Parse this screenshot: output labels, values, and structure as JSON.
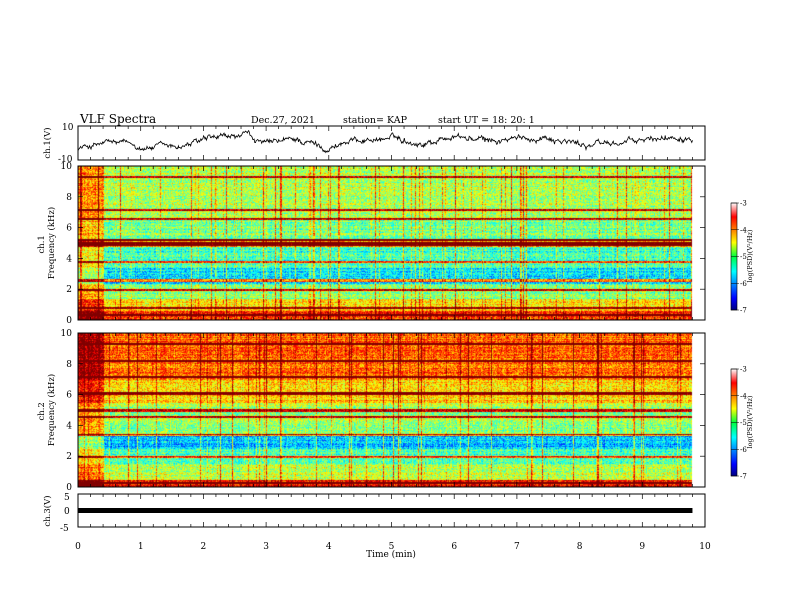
{
  "header": {
    "title": "VLF Spectra",
    "date": "Dec.27, 2021",
    "station": "station= KAP",
    "start_ut": "start  UT =   18: 20: 1"
  },
  "chart_data": [
    {
      "type": "line",
      "ylabel": "ch.1(V)",
      "xlim": [
        0,
        10
      ],
      "ylim": [
        -10,
        10
      ],
      "yticks": [
        "10",
        "-10"
      ],
      "data_extent_min": 9.8,
      "trend": {
        "x": [
          0,
          0.5,
          1,
          1.5,
          2,
          2.3,
          2.7,
          3,
          3.5,
          4,
          4.2,
          4.5,
          5,
          5.5,
          6,
          6.5,
          7,
          7.5,
          8,
          8.5,
          9,
          9.5,
          9.8
        ],
        "y": [
          -3,
          0,
          -2,
          -3,
          1,
          2,
          4,
          -1,
          2,
          -3,
          0,
          2,
          3,
          0,
          4,
          1,
          2,
          4,
          -1,
          0,
          1,
          4,
          5
        ]
      },
      "noise_amplitude": 2
    },
    {
      "type": "heatmap",
      "ylabel": "ch.1\nFrequency (kHz)",
      "xlim": [
        0,
        10
      ],
      "ylim": [
        0,
        10
      ],
      "yticks": [
        "0",
        "2",
        "4",
        "6",
        "8",
        "10"
      ],
      "data_extent_min": 9.8,
      "z_label": "log(PSD)(V²/Hz)",
      "z_range": [
        -7,
        -3
      ],
      "z_ticks": [
        "-3",
        "-4",
        "-5",
        "-6",
        "-7"
      ],
      "bands_khz": [
        {
          "lo": 0,
          "hi": 0.6,
          "z": -3.7
        },
        {
          "lo": 0.6,
          "hi": 1.4,
          "z": -4.4
        },
        {
          "lo": 1.4,
          "hi": 2.4,
          "z": -5.0
        },
        {
          "lo": 2.4,
          "hi": 3.4,
          "z": -5.6
        },
        {
          "lo": 3.4,
          "hi": 4.8,
          "z": -5.3
        },
        {
          "lo": 4.8,
          "hi": 5.3,
          "z": -4.2
        },
        {
          "lo": 5.3,
          "hi": 6.6,
          "z": -5.0
        },
        {
          "lo": 6.6,
          "hi": 10,
          "z": -4.8
        }
      ],
      "lines_khz": [
        0.35,
        0.8,
        2.0,
        2.6,
        3.8,
        4.9,
        5.0,
        5.2,
        6.6,
        7.2,
        9.3
      ],
      "early_segment_end_min": 0.42
    },
    {
      "type": "heatmap",
      "ylabel": "ch.2\nFrequency (kHz)",
      "xlim": [
        0,
        10
      ],
      "ylim": [
        0,
        10
      ],
      "yticks": [
        "0",
        "2",
        "4",
        "6",
        "8",
        "10"
      ],
      "data_extent_min": 9.8,
      "z_label": "log(PSD)(V²/Hz)",
      "z_range": [
        -7,
        -3
      ],
      "z_ticks": [
        "-3",
        "-4",
        "-5",
        "-6",
        "-7"
      ],
      "bands_khz": [
        {
          "lo": 0,
          "hi": 0.5,
          "z": -3.6
        },
        {
          "lo": 0.5,
          "hi": 1.5,
          "z": -4.8
        },
        {
          "lo": 1.5,
          "hi": 2.5,
          "z": -5.3
        },
        {
          "lo": 2.5,
          "hi": 3.4,
          "z": -5.8
        },
        {
          "lo": 3.4,
          "hi": 5.5,
          "z": -4.9
        },
        {
          "lo": 5.5,
          "hi": 7.0,
          "z": -4.3
        },
        {
          "lo": 7.0,
          "hi": 10,
          "z": -3.9
        }
      ],
      "lines_khz": [
        0.3,
        2.0,
        3.4,
        4.6,
        5.0,
        6.1,
        7.2,
        8.2,
        9.3
      ],
      "early_segment_end_min": 0.42
    },
    {
      "type": "line",
      "ylabel": "ch.3(V)",
      "xlim": [
        0,
        10
      ],
      "ylim": [
        -5,
        5
      ],
      "yticks": [
        "5",
        "0",
        "-5"
      ],
      "data_extent_min": 9.8,
      "x": [
        0,
        9.8
      ],
      "y": [
        0,
        0
      ]
    }
  ],
  "xaxis": {
    "label": "Time (min)",
    "ticks": [
      "0",
      "1",
      "2",
      "3",
      "4",
      "5",
      "6",
      "7",
      "8",
      "9",
      "10"
    ]
  }
}
